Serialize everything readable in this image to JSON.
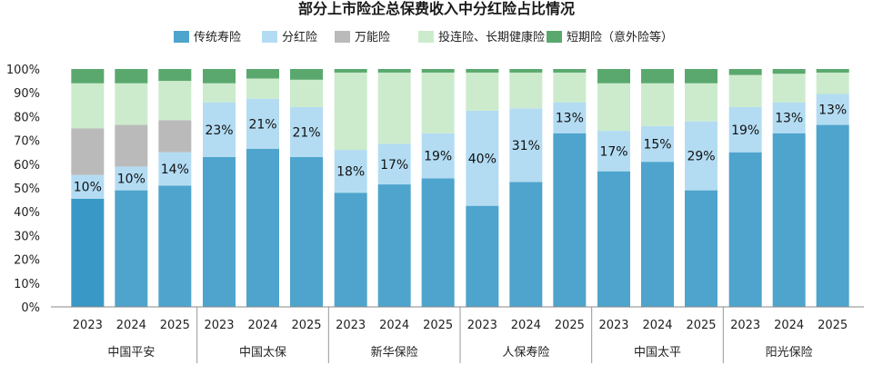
{
  "chart_data": {
    "type": "bar",
    "stacked": true,
    "title": "部分上市险企总保费收入中分红险占比情况",
    "xlabel": "",
    "ylabel": "",
    "ylim": [
      0,
      100
    ],
    "y_ticks": [
      "0%",
      "10%",
      "20%",
      "30%",
      "40%",
      "50%",
      "60%",
      "70%",
      "80%",
      "90%",
      "100%"
    ],
    "legend_position": "top",
    "series": [
      {
        "name": "传统寿险",
        "color": "#4ea4cc"
      },
      {
        "name": "分红险",
        "color": "#b3dcf3"
      },
      {
        "name": "万能险",
        "color": "#bababa"
      },
      {
        "name": "投连险、长期健康险",
        "color": "#ccebcc"
      },
      {
        "name": "短期险（意外险等）",
        "color": "#5aa86e"
      }
    ],
    "groups": [
      {
        "name": "中国平安",
        "bars": [
          {
            "year": "2023",
            "values": [
              45.5,
              10,
              19.5,
              19,
              6
            ],
            "label": "10%",
            "highlight": true
          },
          {
            "year": "2024",
            "values": [
              49,
              10,
              17.5,
              17.5,
              6
            ],
            "label": "10%"
          },
          {
            "year": "2025",
            "values": [
              51,
              14,
              13.5,
              16.5,
              5
            ],
            "label": "14%"
          }
        ]
      },
      {
        "name": "中国太保",
        "bars": [
          {
            "year": "2023",
            "values": [
              63,
              23,
              0,
              8,
              6
            ],
            "label": "23%"
          },
          {
            "year": "2024",
            "values": [
              66.5,
              21,
              0,
              8.5,
              4
            ],
            "label": "21%"
          },
          {
            "year": "2025",
            "values": [
              63,
              21,
              0,
              11.5,
              4.5
            ],
            "label": "21%"
          }
        ]
      },
      {
        "name": "新华保险",
        "bars": [
          {
            "year": "2023",
            "values": [
              48,
              18,
              0,
              32.5,
              1.5
            ],
            "label": "18%"
          },
          {
            "year": "2024",
            "values": [
              51.5,
              17,
              0,
              30,
              1.5
            ],
            "label": "17%"
          },
          {
            "year": "2025",
            "values": [
              54,
              19,
              0,
              25.5,
              1.5
            ],
            "label": "19%"
          }
        ]
      },
      {
        "name": "人保寿险",
        "bars": [
          {
            "year": "2023",
            "values": [
              42.5,
              40,
              0,
              16,
              1.5
            ],
            "label": "40%"
          },
          {
            "year": "2024",
            "values": [
              52.5,
              31,
              0,
              15,
              1.5
            ],
            "label": "31%"
          },
          {
            "year": "2025",
            "values": [
              73,
              13,
              0,
              12.5,
              1.5
            ],
            "label": "13%"
          }
        ]
      },
      {
        "name": "中国太平",
        "bars": [
          {
            "year": "2023",
            "values": [
              57,
              17,
              0,
              20,
              6
            ],
            "label": "17%"
          },
          {
            "year": "2024",
            "values": [
              61,
              15,
              0,
              18,
              6
            ],
            "label": "15%"
          },
          {
            "year": "2025",
            "values": [
              49,
              29,
              0,
              16,
              6
            ],
            "label": "29%"
          }
        ]
      },
      {
        "name": "阳光保险",
        "bars": [
          {
            "year": "2023",
            "values": [
              65,
              19,
              0,
              13.5,
              2.5
            ],
            "label": "19%"
          },
          {
            "year": "2024",
            "values": [
              73,
              13,
              0,
              12,
              2
            ],
            "label": "13%"
          },
          {
            "year": "2025",
            "values": [
              76.5,
              13,
              0,
              9,
              1.5
            ],
            "label": "13%"
          }
        ]
      }
    ]
  }
}
